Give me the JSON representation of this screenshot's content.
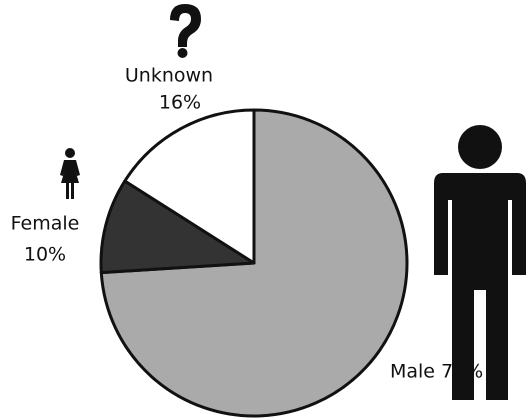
{
  "chart_data": {
    "type": "pie",
    "categories": [
      "Male",
      "Female",
      "Unknown"
    ],
    "values": [
      74,
      10,
      16
    ],
    "value_labels": [
      "74%",
      "10%",
      "16%"
    ],
    "colors": [
      "#aaaaaa",
      "#333333",
      "#ffffff"
    ]
  }
}
